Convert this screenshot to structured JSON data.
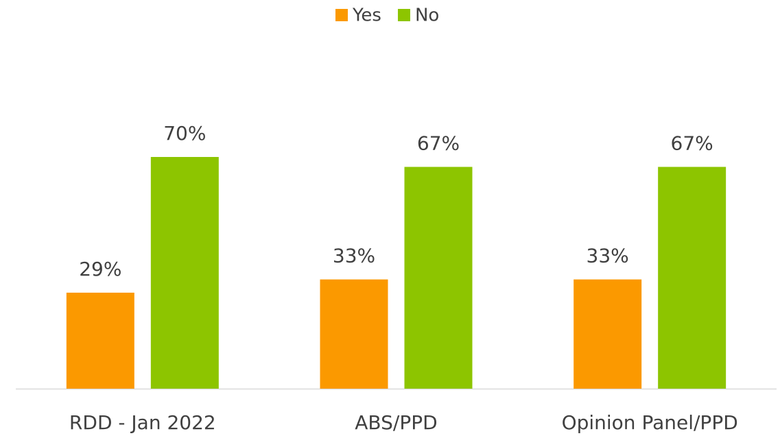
{
  "chart_data": {
    "type": "bar",
    "categories": [
      "RDD - Jan 2022",
      "ABS/PPD",
      "Opinion Panel/PPD"
    ],
    "series": [
      {
        "name": "Yes",
        "color": "#fb9900",
        "values": [
          29,
          33,
          33
        ],
        "value_labels": [
          "29%",
          "33%",
          "33%"
        ]
      },
      {
        "name": "No",
        "color": "#8dc500",
        "values": [
          70,
          67,
          67
        ],
        "value_labels": [
          "70%",
          "67%",
          "67%"
        ]
      }
    ],
    "legend": "top"
  }
}
